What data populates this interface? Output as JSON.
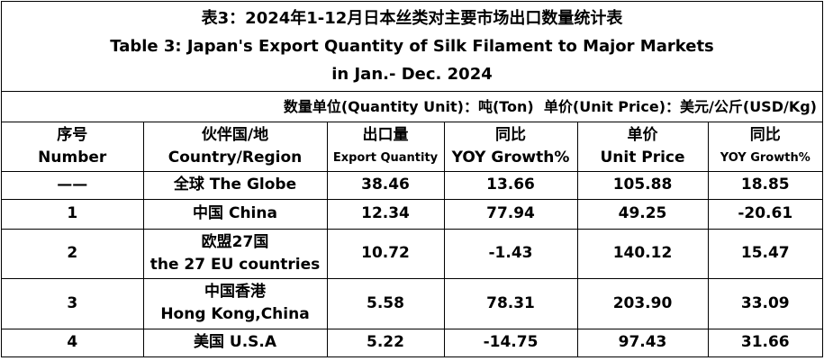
{
  "title": {
    "line1": "表3：2024年1-12月日本丝类对主要市场出口数量统计表",
    "line2": "Table 3: Japan's Export Quantity of Silk Filament to Major Markets",
    "line3": "in Jan.- Dec. 2024"
  },
  "unit_note": "数量单位(Quantity Unit)：吨(Ton)  单价(Unit Price)：美元/公斤(USD/Kg)",
  "table": {
    "header": [
      [
        "序号",
        "Number"
      ],
      [
        "伙伴国/地",
        "Country/Region"
      ],
      [
        "出口量",
        "Export Quantity"
      ],
      [
        "同比",
        "YOY Growth%"
      ],
      [
        "单价",
        "Unit Price"
      ],
      [
        "同比",
        "YOY Growth%"
      ]
    ],
    "rows": [
      [
        [
          "——"
        ],
        [
          "全球 The Globe"
        ],
        [
          "38.46"
        ],
        [
          "13.66"
        ],
        [
          "105.88"
        ],
        [
          "18.85"
        ]
      ],
      [
        [
          "1"
        ],
        [
          "中国 China"
        ],
        [
          "12.34"
        ],
        [
          "77.94"
        ],
        [
          "49.25"
        ],
        [
          "-20.61"
        ]
      ],
      [
        [
          "2"
        ],
        [
          "欧盟27国",
          "the 27 EU countries"
        ],
        [
          "10.72"
        ],
        [
          "-1.43"
        ],
        [
          "140.12"
        ],
        [
          "15.47"
        ]
      ],
      [
        [
          "3"
        ],
        [
          "中国香港",
          "Hong Kong,China"
        ],
        [
          "5.58"
        ],
        [
          "78.31"
        ],
        [
          "203.90"
        ],
        [
          "33.09"
        ]
      ],
      [
        [
          "4"
        ],
        [
          "美国 U.S.A"
        ],
        [
          "5.22"
        ],
        [
          "-14.75"
        ],
        [
          "97.43"
        ],
        [
          "31.66"
        ]
      ]
    ]
  }
}
